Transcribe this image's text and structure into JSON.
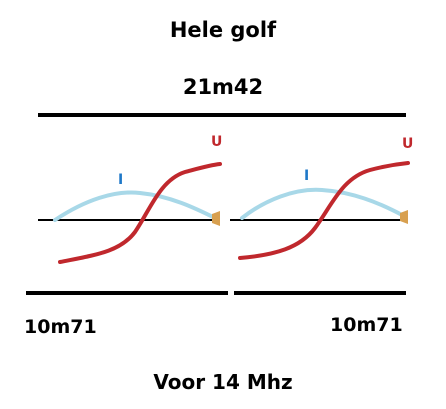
{
  "title": "Hele golf",
  "total_length": "21m42",
  "left_half": {
    "length": "10m71",
    "current_label": "I",
    "voltage_label": "U"
  },
  "right_half": {
    "length": "10m71",
    "current_label": "I",
    "voltage_label": "U"
  },
  "footer": "Voor 14 Mhz",
  "colors": {
    "current_curve": "#a8d8e8",
    "voltage_curve": "#c0282d",
    "current_label": "#1f78c8",
    "voltage_label": "#c0282d",
    "antenna_wire": "#000000",
    "feed_point": "#d8a050"
  }
}
